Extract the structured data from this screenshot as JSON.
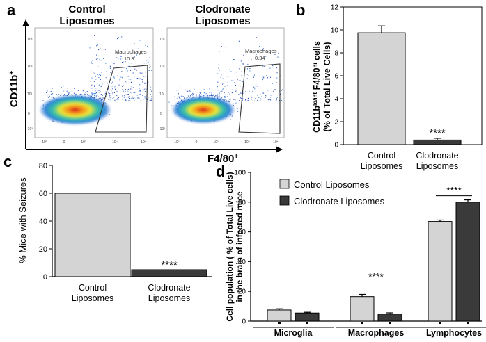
{
  "panel_labels": {
    "a": "a",
    "b": "b",
    "c": "c",
    "d": "d"
  },
  "colors": {
    "light_bar": "#d4d4d4",
    "dark_bar": "#3a3a3a",
    "axis": "#000000",
    "gate": "#333333"
  },
  "chart_data": [
    {
      "panel": "a",
      "type": "scatter",
      "kind": "flow-cytometry-density",
      "ylabel": "CD11b",
      "ylabel_sup": "+",
      "xlabel": "F4/80",
      "xlabel_sup": "+",
      "plots": [
        {
          "title_line1": "Control",
          "title_line2": "Liposomes",
          "gate_label": "Macrophages",
          "gate_value": "10.3"
        },
        {
          "title_line1": "Clodronate",
          "title_line2": "Liposomes",
          "gate_label": "Macrophages",
          "gate_value": "0.34"
        }
      ],
      "x_ticks": [
        "-10³",
        "0",
        "10³",
        "10⁴",
        "10⁵"
      ],
      "y_ticks": [
        "10⁵",
        "10⁴",
        "10³",
        "0",
        "-10³"
      ]
    },
    {
      "panel": "b",
      "type": "bar",
      "categories": [
        "Control Liposomes",
        "Clodronate Liposomes"
      ],
      "category_lines": [
        [
          "Control",
          "Liposomes"
        ],
        [
          "Clodronate",
          "Liposomes"
        ]
      ],
      "values": [
        9.75,
        0.4
      ],
      "errors": [
        0.6,
        0.15
      ],
      "ylim": [
        0,
        12
      ],
      "yticks": [
        "0",
        "2",
        "4",
        "6",
        "8",
        "10",
        "12"
      ],
      "ylabel_line1": "CD11b",
      "ylabel_sup1": "lo/int",
      "ylabel_mid": " F4/80",
      "ylabel_sup2": "hi",
      "ylabel_end": " cells",
      "ylabel_line2": "(% of Total Live Cells)",
      "significance": "****"
    },
    {
      "panel": "c",
      "type": "bar",
      "categories": [
        "Control Liposomes",
        "Clodronate Liposomes"
      ],
      "category_lines": [
        [
          "Control",
          "Liposomes"
        ],
        [
          "Clodronate",
          "Liposomes"
        ]
      ],
      "values": [
        60,
        5
      ],
      "ylim": [
        0,
        80
      ],
      "yticks": [
        "0",
        "20",
        "40",
        "60",
        "80"
      ],
      "ylabel": "% Mice with Seizures",
      "significance": "****"
    },
    {
      "panel": "d",
      "type": "bar",
      "categories": [
        "Microglia",
        "Macrophages",
        "Lymphocytes"
      ],
      "series": [
        {
          "name": "Control Liposomes",
          "values": [
            7.5,
            16.5,
            67
          ],
          "errors": [
            0.8,
            1.5,
            1.0
          ]
        },
        {
          "name": "Clodronate Liposomes",
          "values": [
            5.5,
            4.8,
            80
          ],
          "errors": [
            0.5,
            0.8,
            1.5
          ]
        }
      ],
      "ylim": [
        0,
        100
      ],
      "yticks": [
        "0",
        "20",
        "40",
        "60",
        "80",
        "100"
      ],
      "ylabel_line1": "Cell population ( % of Total Live cells)",
      "ylabel_line2": "in the brain of infected mice",
      "significance": [
        "",
        "****",
        "****"
      ]
    }
  ]
}
